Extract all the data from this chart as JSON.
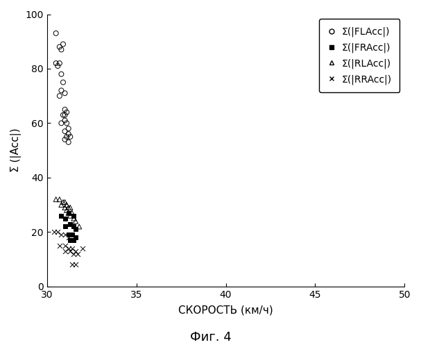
{
  "xlabel": "СКОРОСТЬ (км/ч)",
  "ylabel": "Σ (|Acc|)",
  "caption": "Фиг. 4",
  "xlim": [
    30,
    50
  ],
  "ylim": [
    0,
    100
  ],
  "xticks": [
    30,
    35,
    40,
    45,
    50
  ],
  "yticks": [
    0,
    20,
    40,
    60,
    80,
    100
  ],
  "legend_labels": [
    "Σ(|FLAcc|)",
    "Σ(|FRAcc|)",
    "Σ(|RLAcc|)",
    "Σ(|RRAcc|)"
  ],
  "FLAcc_x": [
    30.5,
    30.7,
    30.8,
    30.9,
    30.5,
    30.7,
    30.6,
    30.8,
    30.9,
    31.0,
    30.7,
    30.8,
    31.0,
    31.1,
    30.9,
    31.0,
    30.8,
    31.0,
    31.1,
    31.2,
    31.0,
    31.1,
    31.2,
    31.3,
    31.0,
    31.2
  ],
  "FLAcc_y": [
    93,
    88,
    87,
    89,
    82,
    82,
    81,
    78,
    75,
    71,
    70,
    72,
    65,
    64,
    63,
    63,
    60,
    61,
    60,
    58,
    57,
    55,
    56,
    55,
    54,
    53
  ],
  "FRAcc_x": [
    30.8,
    31.0,
    31.2,
    31.5,
    31.0,
    31.3,
    31.5,
    31.6,
    31.2,
    31.4,
    31.6,
    31.3,
    31.5
  ],
  "FRAcc_y": [
    26,
    25,
    27,
    26,
    22,
    23,
    22,
    21,
    19,
    19,
    18,
    17,
    17
  ],
  "RLAcc_x": [
    30.5,
    30.7,
    30.9,
    31.0,
    31.1,
    30.8,
    31.0,
    31.2,
    31.3,
    31.1,
    31.2,
    31.4,
    31.3,
    31.5,
    31.6,
    31.8
  ],
  "RLAcc_y": [
    32,
    32,
    31,
    31,
    30,
    30,
    29,
    29,
    29,
    28,
    27,
    27,
    26,
    25,
    24,
    22
  ],
  "RRAcc_x": [
    30.4,
    30.6,
    30.8,
    31.0,
    31.2,
    30.7,
    31.0,
    31.2,
    31.4,
    31.6,
    31.0,
    31.3,
    31.5,
    31.7,
    31.4,
    31.6,
    32.0
  ],
  "RRAcc_y": [
    20,
    20,
    19,
    19,
    18,
    15,
    15,
    14,
    14,
    13,
    13,
    13,
    12,
    12,
    8,
    8,
    14
  ],
  "background_color": "#ffffff",
  "marker_color": "#000000",
  "marker_size": 5,
  "fontsize_label": 11,
  "fontsize_tick": 10,
  "fontsize_caption": 13,
  "fontsize_legend": 10
}
